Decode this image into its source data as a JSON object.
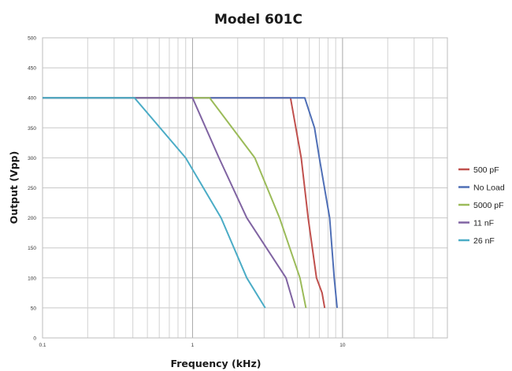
{
  "chart_data": {
    "type": "line",
    "title": "Model 601C",
    "xlabel": "Frequency (kHz)",
    "ylabel": "Output (Vpp)",
    "xscale": "log",
    "xlim": [
      0.1,
      50
    ],
    "ylim": [
      0,
      500
    ],
    "xtick_labels": [
      "0.1",
      "1",
      "10"
    ],
    "ytick_labels": [
      "0",
      "50",
      "100",
      "150",
      "200",
      "250",
      "300",
      "350",
      "400",
      "450",
      "500"
    ],
    "grid": true,
    "legend_position": "right",
    "series": [
      {
        "name": "500 pF",
        "color": "#c0504d",
        "x": [
          0.1,
          4.5,
          5.3,
          5.9,
          6.7,
          7.3,
          7.6
        ],
        "y": [
          400,
          400,
          300,
          200,
          100,
          75,
          50
        ]
      },
      {
        "name": "No Load",
        "color": "#4f6fb6",
        "x": [
          0.1,
          5.6,
          6.5,
          7.0,
          8.2,
          8.8,
          9.2
        ],
        "y": [
          400,
          400,
          350,
          300,
          200,
          100,
          50
        ]
      },
      {
        "name": "5000 pF",
        "color": "#9bbb59",
        "x": [
          0.1,
          1.3,
          2.6,
          3.8,
          5.2,
          5.7
        ],
        "y": [
          400,
          400,
          300,
          200,
          100,
          50
        ]
      },
      {
        "name": "11 nF",
        "color": "#8064a2",
        "x": [
          0.1,
          1.0,
          1.5,
          2.3,
          4.2,
          4.8
        ],
        "y": [
          400,
          400,
          300,
          200,
          100,
          50
        ]
      },
      {
        "name": "26 nF",
        "color": "#4bacc6",
        "x": [
          0.1,
          0.41,
          0.9,
          1.55,
          2.3,
          3.05
        ],
        "y": [
          400,
          400,
          300,
          200,
          100,
          50
        ]
      }
    ]
  }
}
